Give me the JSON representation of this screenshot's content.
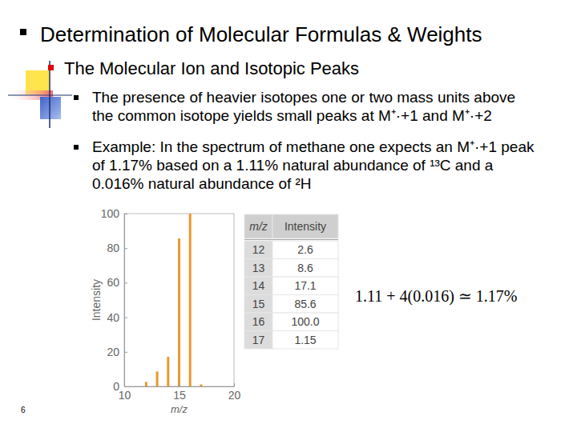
{
  "slide": {
    "title": "Determination of Molecular Formulas & Weights",
    "subtitle": "The Molecular Ion and Isotopic Peaks",
    "bullets": [
      [
        "The presence of heavier isotopes one or two mass units above",
        "the common isotope yields small peaks at M⁺·+1 and M⁺·+2"
      ],
      [
        "Example: In the spectrum of methane one expects an M⁺·+1 peak",
        "of 1.17% based on a 1.11% natural abundance of ¹³C and a",
        "0.016% natural abundance of ²H"
      ]
    ],
    "table": {
      "header": [
        "m/z",
        "Intensity"
      ],
      "rows": [
        [
          "12",
          "2.6"
        ],
        [
          "13",
          "8.6"
        ],
        [
          "14",
          "17.1"
        ],
        [
          "15",
          "85.6"
        ],
        [
          "16",
          "100.0"
        ],
        [
          "17",
          "1.15"
        ]
      ]
    },
    "formula": "1.11 + 4(0.016) ≃ 1.17%",
    "page": "6"
  },
  "chart_data": {
    "type": "bar",
    "x_label": "m/z",
    "y_label": "Intensity",
    "x": [
      12,
      13,
      14,
      15,
      16,
      17
    ],
    "values": [
      2.6,
      8.6,
      17.1,
      85.6,
      100,
      1.15
    ],
    "color": "#e8992f",
    "xlim": [
      10,
      20
    ],
    "xticks": [
      10,
      15,
      20
    ],
    "ylim": [
      0,
      100
    ],
    "yticks": [
      0,
      20,
      40,
      60,
      80,
      100
    ],
    "grid": false
  }
}
